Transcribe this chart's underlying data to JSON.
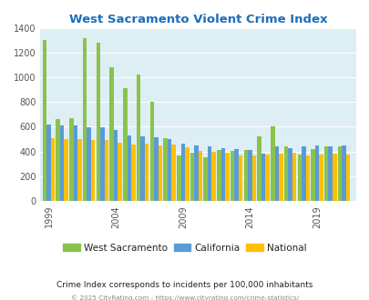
{
  "title": "West Sacramento Violent Crime Index",
  "title_color": "#1a6ebd",
  "subtitle": "Crime Index corresponds to incidents per 100,000 inhabitants",
  "footer": "© 2025 CityRating.com - https://www.cityrating.com/crime-statistics/",
  "years": [
    1999,
    2000,
    2001,
    2002,
    2003,
    2004,
    2005,
    2006,
    2007,
    2008,
    2009,
    2010,
    2011,
    2012,
    2013,
    2014,
    2015,
    2016,
    2017,
    2018,
    2019,
    2020,
    2021
  ],
  "west_sac": [
    1300,
    665,
    670,
    1315,
    1280,
    1080,
    910,
    1025,
    800,
    505,
    370,
    390,
    355,
    415,
    405,
    410,
    525,
    600,
    440,
    375,
    420,
    440,
    440
  ],
  "california": [
    620,
    610,
    610,
    598,
    595,
    575,
    530,
    525,
    515,
    500,
    465,
    450,
    440,
    430,
    420,
    410,
    385,
    440,
    430,
    445,
    450,
    440,
    450
  ],
  "national": [
    505,
    500,
    500,
    495,
    490,
    470,
    455,
    465,
    450,
    455,
    435,
    408,
    400,
    388,
    370,
    365,
    373,
    386,
    388,
    369,
    379,
    381,
    377
  ],
  "ws_color": "#8bc34a",
  "ca_color": "#5b9bd5",
  "nat_color": "#ffc000",
  "bg_color": "#ddeef5",
  "ylim": [
    0,
    1400
  ],
  "yticks": [
    0,
    200,
    400,
    600,
    800,
    1000,
    1200,
    1400
  ],
  "xtick_years": [
    1999,
    2004,
    2009,
    2014,
    2019
  ],
  "legend_labels": [
    "West Sacramento",
    "California",
    "National"
  ],
  "bar_width": 0.3
}
